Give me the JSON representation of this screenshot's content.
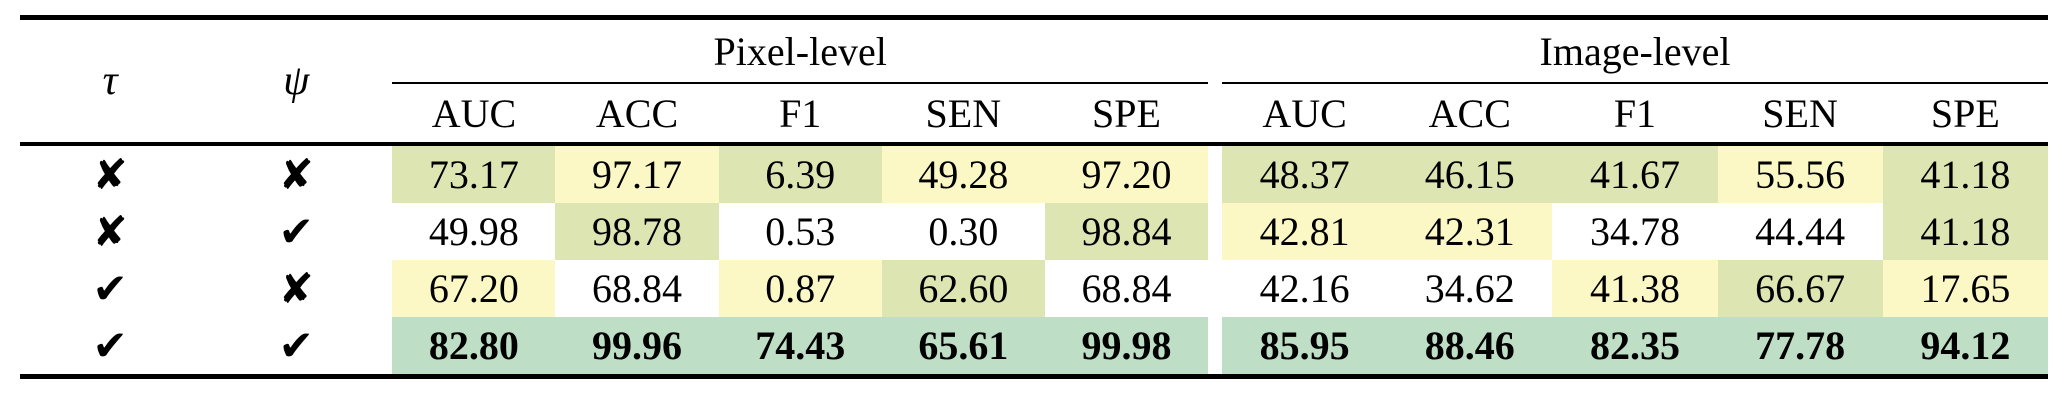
{
  "table": {
    "col_tau": "τ",
    "col_psi": "ψ",
    "groups": [
      {
        "label": "Pixel-level",
        "metrics": [
          "AUC",
          "ACC",
          "F1",
          "SEN",
          "SPE"
        ]
      },
      {
        "label": "Image-level",
        "metrics": [
          "AUC",
          "ACC",
          "F1",
          "SEN",
          "SPE"
        ]
      }
    ],
    "legend_colors": {
      "best": "#bedec6",
      "second": "#dde6b2",
      "third": "#fbf8c6",
      "none": "#ffffff"
    },
    "rows": [
      {
        "tau": "✘",
        "psi": "✘",
        "bold": false,
        "values": [
          "73.17",
          "97.17",
          "6.39",
          "49.28",
          "97.20",
          "48.37",
          "46.15",
          "41.67",
          "55.56",
          "41.18"
        ],
        "highlights": [
          "second",
          "third",
          "second",
          "third",
          "third",
          "second",
          "second",
          "second",
          "third",
          "second"
        ]
      },
      {
        "tau": "✘",
        "psi": "✔",
        "bold": false,
        "values": [
          "49.98",
          "98.78",
          "0.53",
          "0.30",
          "98.84",
          "42.81",
          "42.31",
          "34.78",
          "44.44",
          "41.18"
        ],
        "highlights": [
          "none",
          "second",
          "none",
          "none",
          "second",
          "third",
          "third",
          "none",
          "none",
          "second"
        ]
      },
      {
        "tau": "✔",
        "psi": "✘",
        "bold": false,
        "values": [
          "67.20",
          "68.84",
          "0.87",
          "62.60",
          "68.84",
          "42.16",
          "34.62",
          "41.38",
          "66.67",
          "17.65"
        ],
        "highlights": [
          "third",
          "none",
          "third",
          "second",
          "none",
          "none",
          "none",
          "third",
          "second",
          "third"
        ]
      },
      {
        "tau": "✔",
        "psi": "✔",
        "bold": true,
        "values": [
          "82.80",
          "99.96",
          "74.43",
          "65.61",
          "99.98",
          "85.95",
          "88.46",
          "82.35",
          "77.78",
          "94.12"
        ],
        "highlights": [
          "best",
          "best",
          "best",
          "best",
          "best",
          "best",
          "best",
          "best",
          "best",
          "best"
        ]
      }
    ]
  }
}
